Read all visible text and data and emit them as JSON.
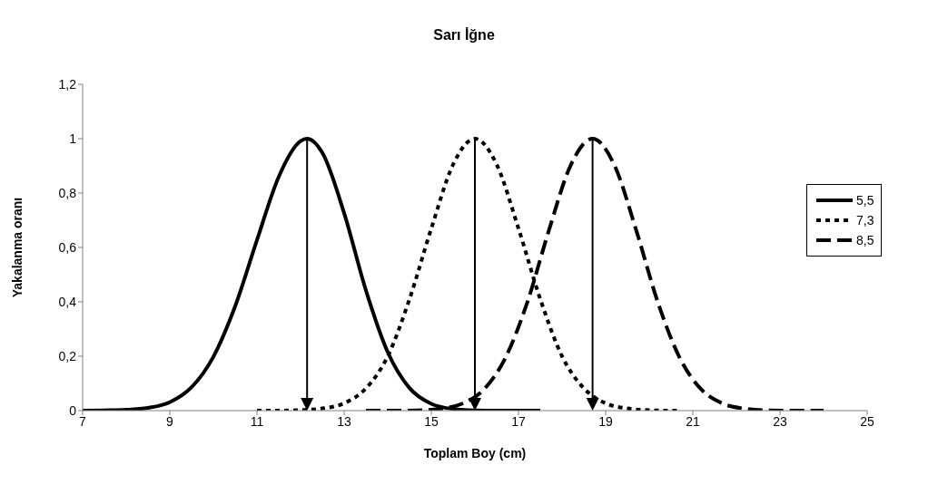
{
  "chart_data": {
    "type": "line",
    "title": "Sarı İğne",
    "xlabel": "Toplam Boy (cm)",
    "ylabel": "Yakalanma oranı",
    "xlim": [
      7,
      25
    ],
    "xticks": [
      7,
      9,
      11,
      13,
      15,
      17,
      19,
      21,
      23,
      25
    ],
    "ylim": [
      0,
      1.2
    ],
    "yticks": [
      {
        "value": 0,
        "label": "0"
      },
      {
        "value": 0.2,
        "label": "0,2"
      },
      {
        "value": 0.4,
        "label": "0,4"
      },
      {
        "value": 0.6,
        "label": "0,6"
      },
      {
        "value": 0.8,
        "label": "0,8"
      },
      {
        "value": 1,
        "label": "1"
      },
      {
        "value": 1.2,
        "label": "1,2"
      }
    ],
    "grid": false,
    "legend": "right",
    "marker": "none",
    "series": [
      {
        "name": "5,5",
        "color": "#000000",
        "line_style": "solid",
        "x": [
          7,
          7.5,
          8,
          8.5,
          9,
          9.5,
          10,
          10.5,
          11,
          11.5,
          12,
          12.15,
          12.5,
          13,
          13.5,
          14,
          14.5,
          15,
          15.5,
          16,
          16.5,
          17,
          17.5
        ],
        "values": [
          0,
          0.001,
          0.003,
          0.01,
          0.031,
          0.086,
          0.198,
          0.384,
          0.627,
          0.86,
          0.991,
          1,
          0.948,
          0.726,
          0.442,
          0.215,
          0.083,
          0.025,
          0.006,
          0.001,
          0,
          0,
          0
        ]
      },
      {
        "name": "7,3",
        "color": "#000000",
        "line_style": "dotted",
        "x": [
          11,
          11.5,
          12,
          12.5,
          13,
          13.5,
          14,
          14.5,
          15,
          15.5,
          16,
          16.5,
          17,
          17.5,
          18,
          18.5,
          19,
          19.5,
          20,
          20.5,
          20.7
        ],
        "values": [
          0,
          0,
          0.002,
          0.008,
          0.027,
          0.082,
          0.2,
          0.41,
          0.67,
          0.905,
          1,
          0.905,
          0.67,
          0.41,
          0.2,
          0.082,
          0.027,
          0.008,
          0.002,
          0,
          0
        ]
      },
      {
        "name": "8,5",
        "color": "#000000",
        "line_style": "dashed",
        "x": [
          13.5,
          14.2,
          14.7,
          15.2,
          15.7,
          16.2,
          16.7,
          17.2,
          17.7,
          18.2,
          18.7,
          19.2,
          19.7,
          20.2,
          20.7,
          21.2,
          21.7,
          22.2,
          22.7,
          23.2,
          24
        ],
        "values": [
          0,
          0,
          0.001,
          0.007,
          0.025,
          0.077,
          0.194,
          0.397,
          0.664,
          0.903,
          1,
          0.903,
          0.664,
          0.397,
          0.194,
          0.077,
          0.025,
          0.007,
          0.001,
          0,
          0
        ]
      }
    ],
    "ref_lines": [
      {
        "axis": "x",
        "value": 12.15,
        "color": "#000000"
      },
      {
        "axis": "x",
        "value": 16,
        "color": "#000000"
      },
      {
        "axis": "x",
        "value": 18.7,
        "color": "#000000"
      }
    ]
  }
}
